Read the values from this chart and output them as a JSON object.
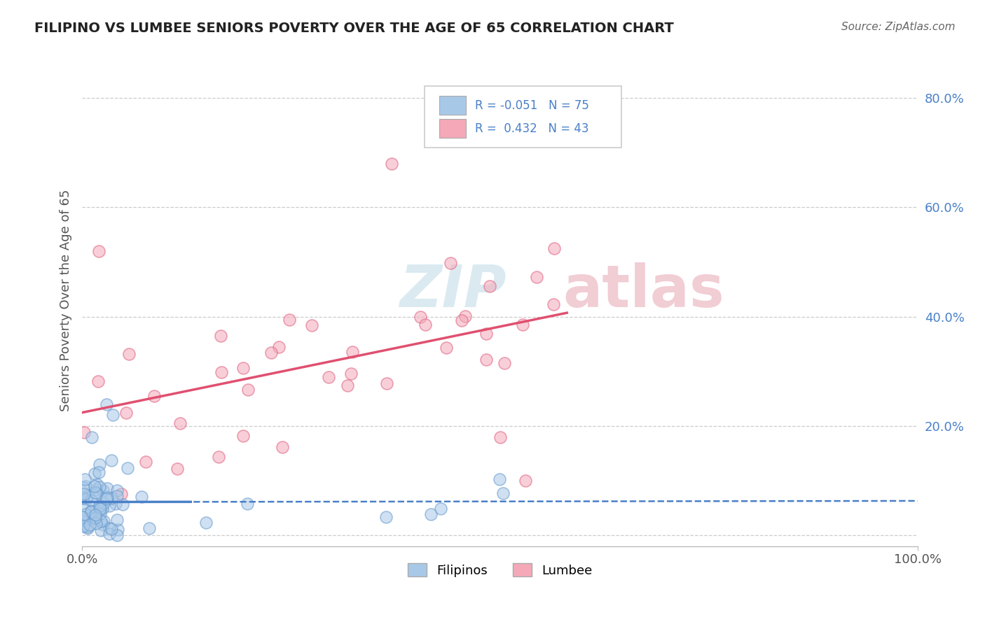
{
  "title": "FILIPINO VS LUMBEE SENIORS POVERTY OVER THE AGE OF 65 CORRELATION CHART",
  "source": "Source: ZipAtlas.com",
  "ylabel": "Seniors Poverty Over the Age of 65",
  "xlim": [
    0,
    1.0
  ],
  "ylim": [
    -0.02,
    0.88
  ],
  "ytick_vals": [
    0.0,
    0.2,
    0.4,
    0.6,
    0.8
  ],
  "ytick_labels": [
    "",
    "20.0%",
    "40.0%",
    "60.0%",
    "80.0%"
  ],
  "filipino_R": -0.051,
  "filipino_N": 75,
  "lumbee_R": 0.432,
  "lumbee_N": 43,
  "filipino_color": "#a8c8e8",
  "lumbee_color": "#f4a8b8",
  "filipino_edge_color": "#6699cc",
  "lumbee_edge_color": "#e06080",
  "filipino_trend_color": "#4a80c8",
  "lumbee_trend_color": "#e05070",
  "background_color": "#ffffff",
  "grid_color": "#cccccc",
  "title_color": "#222222",
  "source_color": "#666666",
  "ytick_color": "#4a80c8",
  "xtick_color": "#555555",
  "watermark_color": "#d8e8f0",
  "watermark_color2": "#f0c8d0"
}
